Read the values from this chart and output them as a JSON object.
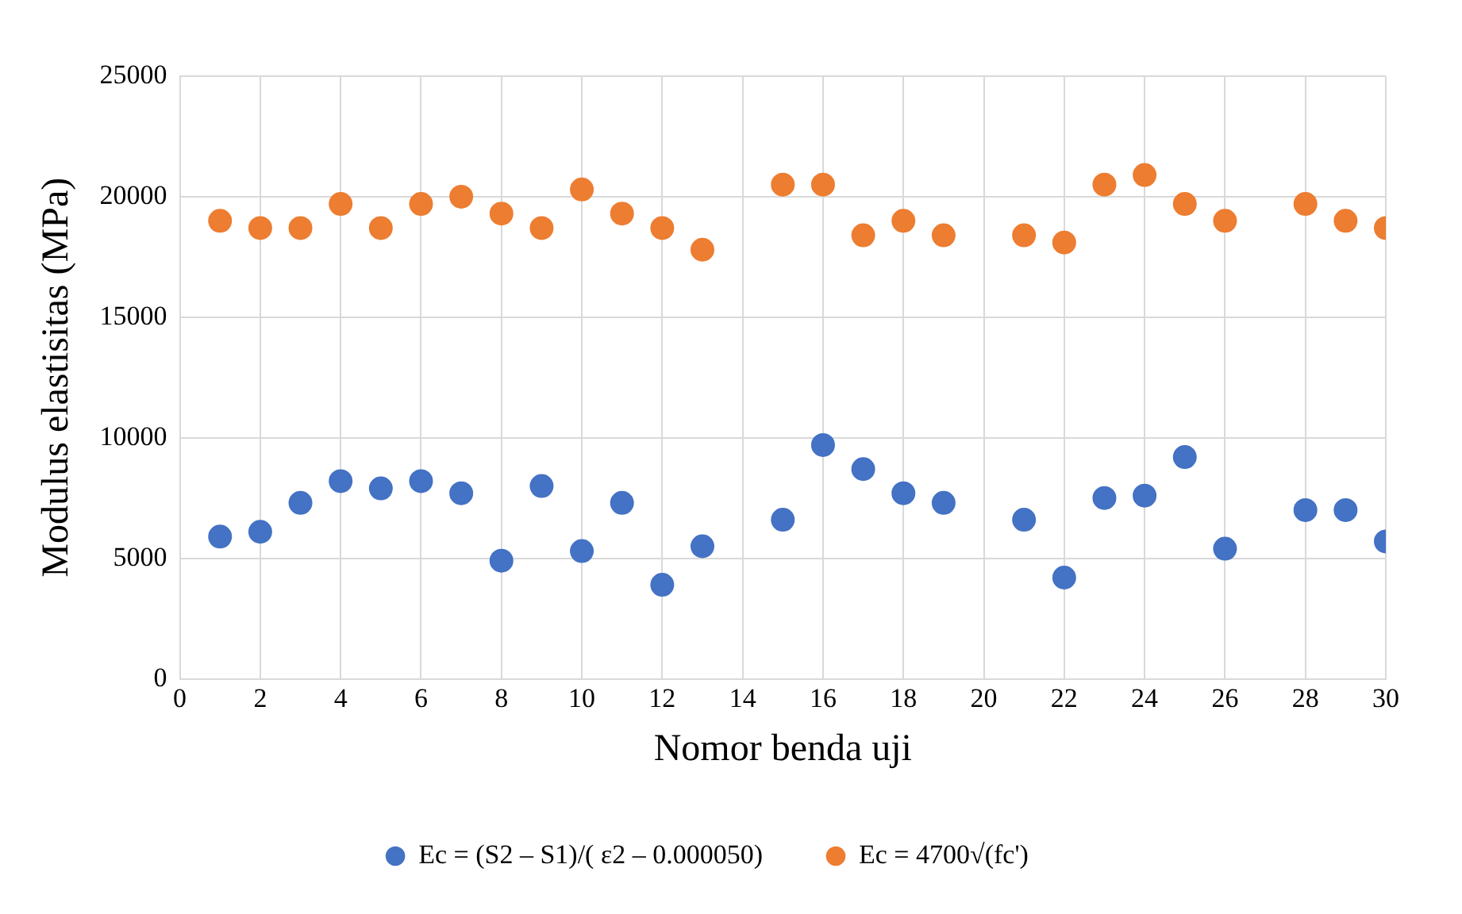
{
  "chart_data": {
    "type": "scatter",
    "xlabel": "Nomor benda uji",
    "ylabel": "Modulus elastisitas (MPa)",
    "x": [
      1,
      2,
      3,
      4,
      5,
      6,
      7,
      8,
      9,
      10,
      11,
      12,
      13,
      15,
      16,
      17,
      18,
      19,
      21,
      22,
      23,
      24,
      25,
      26,
      28,
      29,
      30
    ],
    "series": [
      {
        "name": "Ec = (S2 – S1)/( ε2 – 0.000050)",
        "color": "#4472c4",
        "values": [
          5900,
          6100,
          7300,
          8200,
          7900,
          8200,
          7700,
          4900,
          8000,
          5300,
          7300,
          3900,
          5500,
          6600,
          9700,
          8700,
          7700,
          7300,
          6600,
          4200,
          7500,
          7600,
          9200,
          5400,
          7000,
          7000,
          5700
        ]
      },
      {
        "name": "Ec = 4700√(fc')",
        "color": "#ed7d31",
        "values": [
          19000,
          18700,
          18700,
          19700,
          18700,
          19700,
          20000,
          19300,
          18700,
          20300,
          19300,
          18700,
          17800,
          20500,
          20500,
          18400,
          19000,
          18400,
          18400,
          18100,
          20500,
          20900,
          19700,
          19000,
          19700,
          19000,
          18700
        ]
      }
    ],
    "xlim": [
      0,
      30
    ],
    "xticks": [
      0,
      2,
      4,
      6,
      8,
      10,
      12,
      14,
      16,
      18,
      20,
      22,
      24,
      26,
      28,
      30
    ],
    "ylim": [
      0,
      25000
    ],
    "yticks": [
      0,
      5000,
      10000,
      15000,
      20000,
      25000
    ],
    "grid": true,
    "legend": "bottom",
    "marker": "circle"
  }
}
